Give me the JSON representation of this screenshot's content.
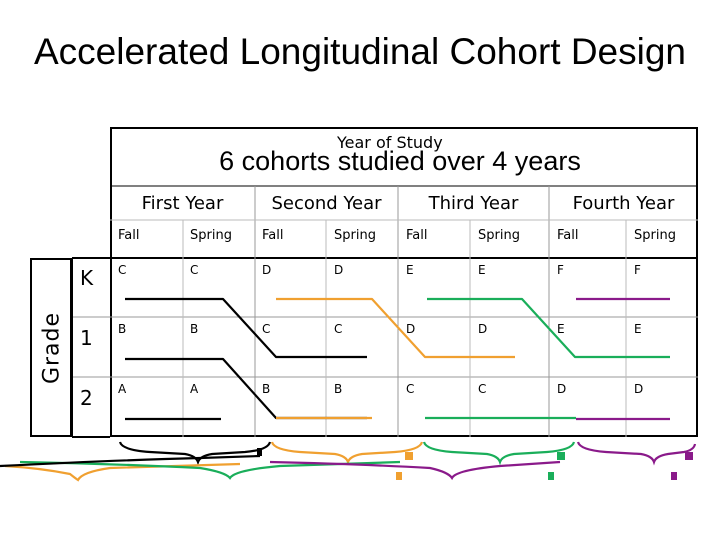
{
  "title": "Accelerated Longitudinal Cohort Design",
  "subtitle": "6 cohorts studied over 4 years",
  "year_of_study": "Year of Study",
  "grade_label": "Grade",
  "years": [
    "First Year",
    "Second Year",
    "Third Year",
    "Fourth Year"
  ],
  "seasons": [
    "Fall",
    "Spring",
    "Fall",
    "Spring",
    "Fall",
    "Spring",
    "Fall",
    "Spring"
  ],
  "rows": [
    {
      "label": "K",
      "cells": [
        "C",
        "C",
        "D",
        "D",
        "E",
        "E",
        "F",
        "F"
      ]
    },
    {
      "label": "1",
      "cells": [
        "B",
        "B",
        "C",
        "C",
        "D",
        "D",
        "E",
        "E"
      ]
    },
    {
      "label": "2",
      "cells": [
        "A",
        "A",
        "B",
        "B",
        "C",
        "C",
        "D",
        "D"
      ]
    }
  ],
  "colors": {
    "year1": "#000000",
    "year2": "#f0a030",
    "year3": "#1aae5a",
    "year4": "#8a1a8a"
  }
}
